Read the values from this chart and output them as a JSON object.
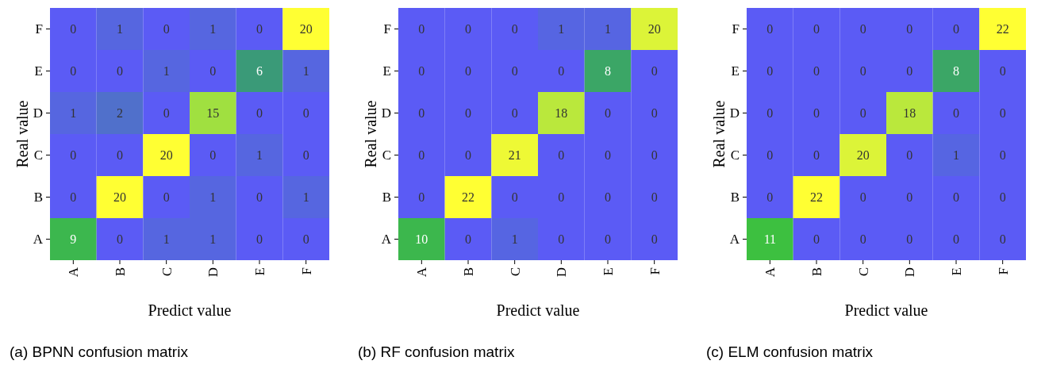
{
  "chart_data": [
    {
      "type": "heatmap",
      "title": "(a) BPNN confusion matrix",
      "xlabel": "Predict value",
      "ylabel": "Real value",
      "categories": [
        "A",
        "B",
        "C",
        "D",
        "E",
        "F"
      ],
      "y_categories": [
        "F",
        "E",
        "D",
        "C",
        "B",
        "A"
      ],
      "data_labels": true,
      "cells": [
        [
          0,
          1,
          0,
          1,
          0,
          20
        ],
        [
          0,
          0,
          1,
          0,
          6,
          1
        ],
        [
          1,
          2,
          0,
          15,
          0,
          0
        ],
        [
          0,
          0,
          20,
          0,
          1,
          0
        ],
        [
          0,
          20,
          0,
          1,
          0,
          1
        ],
        [
          9,
          0,
          1,
          1,
          0,
          0
        ]
      ]
    },
    {
      "type": "heatmap",
      "title": "(b) RF confusion matrix",
      "xlabel": "Predict value",
      "ylabel": "Real value",
      "categories": [
        "A",
        "B",
        "C",
        "D",
        "E",
        "F"
      ],
      "y_categories": [
        "F",
        "E",
        "D",
        "C",
        "B",
        "A"
      ],
      "data_labels": true,
      "cells": [
        [
          0,
          0,
          0,
          1,
          1,
          20
        ],
        [
          0,
          0,
          0,
          0,
          8,
          0
        ],
        [
          0,
          0,
          0,
          18,
          0,
          0
        ],
        [
          0,
          0,
          21,
          0,
          0,
          0
        ],
        [
          0,
          22,
          0,
          0,
          0,
          0
        ],
        [
          10,
          0,
          1,
          0,
          0,
          0
        ]
      ]
    },
    {
      "type": "heatmap",
      "title": "(c) ELM confusion matrix",
      "xlabel": "Predict value",
      "ylabel": "Real value",
      "categories": [
        "A",
        "B",
        "C",
        "D",
        "E",
        "F"
      ],
      "y_categories": [
        "F",
        "E",
        "D",
        "C",
        "B",
        "A"
      ],
      "data_labels": true,
      "cells": [
        [
          0,
          0,
          0,
          0,
          0,
          22
        ],
        [
          0,
          0,
          0,
          0,
          8,
          0
        ],
        [
          0,
          0,
          0,
          18,
          0,
          0
        ],
        [
          0,
          0,
          20,
          0,
          1,
          0
        ],
        [
          0,
          22,
          0,
          0,
          0,
          0
        ],
        [
          11,
          0,
          0,
          0,
          0,
          0
        ]
      ]
    }
  ]
}
